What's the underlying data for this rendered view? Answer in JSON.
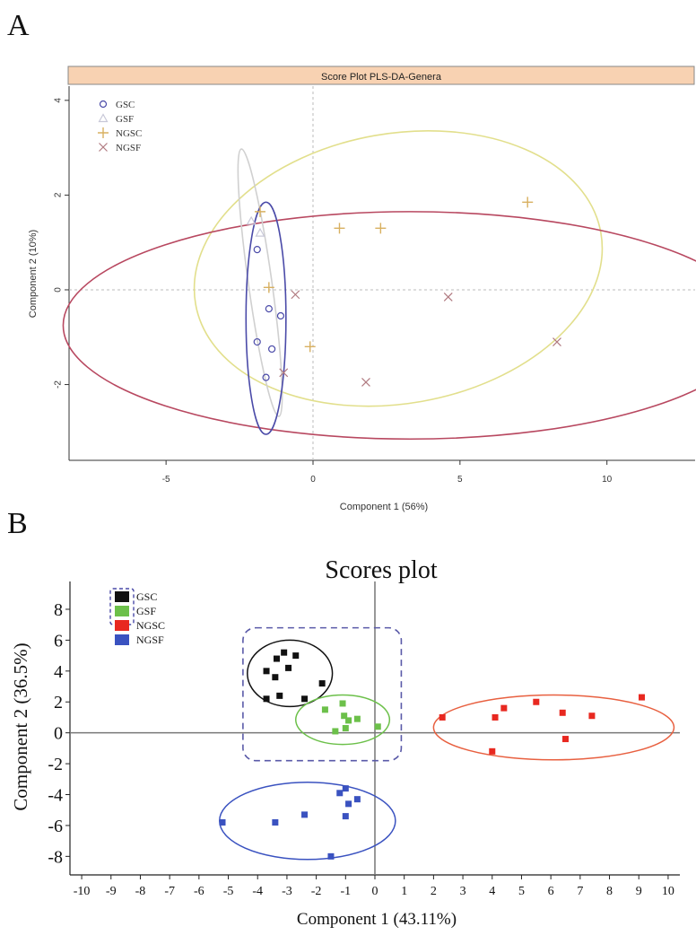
{
  "panel_a_letter": "A",
  "panel_b_letter": "B",
  "chart_data": [
    {
      "type": "scatter",
      "title": "Score Plot PLS-DA-Genera",
      "xlabel": "Component 1 (56%)",
      "ylabel": "Component 2 (10%)",
      "xlim": [
        -8.3,
        13.0
      ],
      "ylim": [
        -3.6,
        4.3
      ],
      "x_ticks": [
        -5,
        0,
        5,
        10
      ],
      "y_ticks": [
        -2,
        0,
        2,
        4
      ],
      "grid": false,
      "reference_lines": {
        "x": 0,
        "y": 0,
        "style": "dashed"
      },
      "legend_position": "top-left",
      "series": [
        {
          "name": "GSC",
          "marker": "circle",
          "color": "#4a4aa8",
          "x": [
            -1.9,
            -1.5,
            -1.1,
            -1.9,
            -1.4,
            -1.6
          ],
          "y": [
            0.85,
            -0.4,
            -0.55,
            -1.1,
            -1.25,
            -1.85
          ]
        },
        {
          "name": "GSF",
          "marker": "triangle",
          "color": "#c8c8d8",
          "x": [
            -2.1,
            -1.8
          ],
          "y": [
            1.45,
            1.2
          ]
        },
        {
          "name": "NGSC",
          "marker": "plus",
          "color": "#d8b060",
          "x": [
            -1.8,
            -1.5,
            -0.1,
            0.9,
            2.3,
            7.3
          ],
          "y": [
            1.65,
            0.05,
            -1.2,
            1.3,
            1.3,
            1.85
          ]
        },
        {
          "name": "NGSF",
          "marker": "x",
          "color": "#b07a80",
          "x": [
            -0.6,
            -1.0,
            1.8,
            4.6,
            8.3
          ],
          "y": [
            -0.1,
            -1.75,
            -1.95,
            -0.15,
            -1.1
          ]
        }
      ],
      "ellipses": [
        {
          "group": "NGSC",
          "color": "#e2df8c",
          "cx": 2.9,
          "cy": 0.45,
          "rx": 7.0,
          "ry": 2.85,
          "angle_deg": 10
        },
        {
          "group": "NGSF",
          "color": "#b84860",
          "cx": 3.3,
          "cy": -0.75,
          "rx": 11.8,
          "ry": 2.4,
          "angle_deg": 0
        },
        {
          "group": "GSF",
          "color": "#d0d0d0",
          "cx": -1.8,
          "cy": 0.15,
          "rx": 0.4,
          "ry": 2.85,
          "angle_deg": 8
        },
        {
          "group": "GSC",
          "color": "#4a4aa8",
          "cx": -1.6,
          "cy": -0.6,
          "rx": 0.68,
          "ry": 2.45,
          "angle_deg": 0
        }
      ]
    },
    {
      "type": "scatter",
      "title": "Scores plot",
      "xlabel": "Component 1 (43.11%)",
      "ylabel": "Component 2 (36.5%)",
      "xlim": [
        -10.4,
        10.4
      ],
      "ylim": [
        -9.2,
        9.8
      ],
      "x_ticks": [
        -10,
        -9,
        -8,
        -7,
        -6,
        -5,
        -4,
        -3,
        -2,
        -1,
        0,
        1,
        2,
        3,
        4,
        5,
        6,
        7,
        8,
        9,
        10
      ],
      "y_ticks": [
        -8,
        -6,
        -4,
        -2,
        0,
        2,
        4,
        6,
        8
      ],
      "grid": false,
      "reference_lines": {
        "x": 0,
        "y": 0,
        "style": "solid"
      },
      "legend_position": "top-left",
      "series": [
        {
          "name": "GSC",
          "marker": "square",
          "color": "#111111",
          "x": [
            -3.1,
            -2.7,
            -2.95,
            -3.35,
            -3.7,
            -3.4,
            -3.25,
            -3.7,
            -2.4,
            -1.8
          ],
          "y": [
            5.2,
            5.0,
            4.2,
            4.8,
            4.0,
            3.6,
            2.4,
            2.2,
            2.2,
            3.2
          ]
        },
        {
          "name": "GSF",
          "marker": "square",
          "color": "#6cc04a",
          "x": [
            -1.7,
            -1.1,
            -1.05,
            -0.9,
            -1.0,
            -0.6,
            -1.35,
            0.1
          ],
          "y": [
            1.5,
            1.9,
            1.1,
            0.8,
            0.3,
            0.9,
            0.1,
            0.4
          ]
        },
        {
          "name": "NGSC",
          "marker": "square",
          "color": "#e82820",
          "x": [
            2.3,
            4.1,
            4.4,
            5.5,
            6.4,
            7.4,
            9.1,
            4.0,
            6.5
          ],
          "y": [
            1.0,
            1.0,
            1.6,
            2.0,
            1.3,
            1.1,
            2.3,
            -1.2,
            -0.4
          ]
        },
        {
          "name": "NGSF",
          "marker": "square",
          "color": "#3a52c0",
          "x": [
            -5.2,
            -3.4,
            -2.4,
            -1.2,
            -1.0,
            -0.9,
            -0.6,
            -1.0,
            -1.5
          ],
          "y": [
            -5.8,
            -5.8,
            -5.3,
            -3.9,
            -3.6,
            -4.6,
            -4.3,
            -5.4,
            -8.0
          ]
        }
      ],
      "ellipses": [
        {
          "group": "GSC",
          "color": "#111111",
          "cx": -2.9,
          "cy": 3.85,
          "rx": 1.45,
          "ry": 2.15
        },
        {
          "group": "GSF",
          "color": "#6cc04a",
          "cx": -1.1,
          "cy": 0.85,
          "rx": 1.6,
          "ry": 1.6
        },
        {
          "group": "NGSC",
          "color": "#e86040",
          "cx": 6.1,
          "cy": 0.35,
          "rx": 4.1,
          "ry": 2.1
        },
        {
          "group": "NGSF",
          "color": "#3a52c0",
          "cx": -2.3,
          "cy": -5.7,
          "rx": 3.0,
          "ry": 2.5
        }
      ],
      "grouping_boxes": [
        {
          "groups": [
            "GSC",
            "GSF"
          ],
          "x0": -4.5,
          "x1": 0.9,
          "y0": -1.8,
          "y1": 6.8,
          "style": "dashed",
          "color": "#5a5aa8"
        }
      ]
    }
  ]
}
